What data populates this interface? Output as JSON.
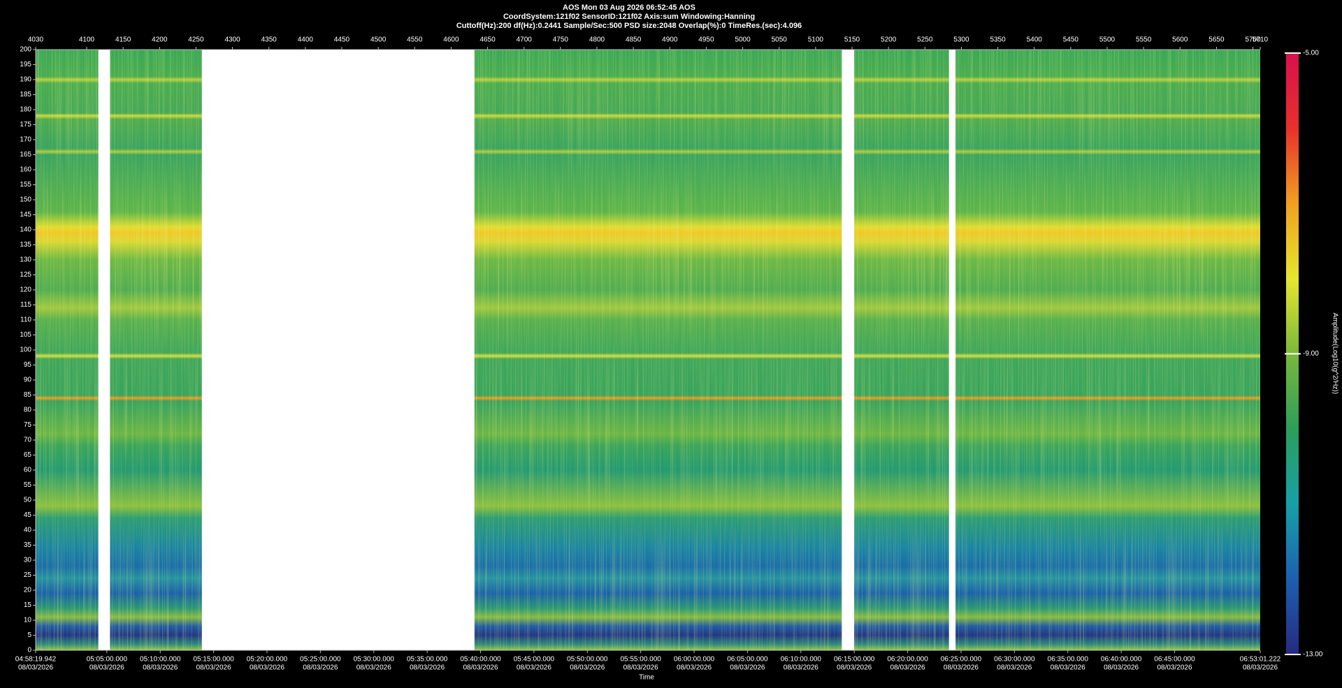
{
  "chart_data": {
    "type": "spectrogram",
    "title": "AOS  Mon 03 Aug 2026 06:52:45  AOS",
    "subtitle": "CoordSystem:121f02    SensorID:121f02     Axis:sum      Windowing:Hanning",
    "settings_line": "Cuttoff(Hz):200      df(Hz):0.2441       Sample/Sec:500       PSD size:2048       Overlap(%):0        TimeRes.(sec):4.096",
    "xlabel": "Time",
    "xlim": [
      4030,
      5710
    ],
    "x2ticks": [
      4030,
      4100,
      4150,
      4200,
      4250,
      4300,
      4350,
      4400,
      4450,
      4500,
      4550,
      4600,
      4650,
      4700,
      4750,
      4800,
      4850,
      4900,
      4950,
      5000,
      5050,
      5100,
      5150,
      5200,
      5250,
      5300,
      5350,
      5400,
      5450,
      5500,
      5550,
      5600,
      5650,
      5700,
      5710
    ],
    "xticks": [
      {
        "value": 4030,
        "label": "04:58:19.942",
        "date": "08/03/2026"
      },
      {
        "value": 4127.67,
        "label": "05:05:00.000",
        "date": "08/03/2026"
      },
      {
        "value": 4200.91,
        "label": "05:10:00.000",
        "date": "08/03/2026"
      },
      {
        "value": 4274.15,
        "label": "05:15:00.000",
        "date": "08/03/2026"
      },
      {
        "value": 4347.4,
        "label": "05:20:00.000",
        "date": "08/03/2026"
      },
      {
        "value": 4420.64,
        "label": "05:25:00.000",
        "date": "08/03/2026"
      },
      {
        "value": 4493.88,
        "label": "05:30:00.000",
        "date": "08/03/2026"
      },
      {
        "value": 4567.12,
        "label": "05:35:00.000",
        "date": "08/03/2026"
      },
      {
        "value": 4640.37,
        "label": "05:40:00.000",
        "date": "08/03/2026"
      },
      {
        "value": 4713.61,
        "label": "05:45:00.000",
        "date": "08/03/2026"
      },
      {
        "value": 4786.85,
        "label": "05:50:00.000",
        "date": "08/03/2026"
      },
      {
        "value": 4860.09,
        "label": "05:55:00.000",
        "date": "08/03/2026"
      },
      {
        "value": 4933.34,
        "label": "06:00:00.000",
        "date": "08/03/2026"
      },
      {
        "value": 5006.58,
        "label": "06:05:00.000",
        "date": "08/03/2026"
      },
      {
        "value": 5079.82,
        "label": "06:10:00.000",
        "date": "08/03/2026"
      },
      {
        "value": 5153.06,
        "label": "06:15:00.000",
        "date": "08/03/2026"
      },
      {
        "value": 5226.31,
        "label": "06:20:00.000",
        "date": "08/03/2026"
      },
      {
        "value": 5299.55,
        "label": "06:25:00.000",
        "date": "08/03/2026"
      },
      {
        "value": 5372.79,
        "label": "06:30:00.000",
        "date": "08/03/2026"
      },
      {
        "value": 5446.03,
        "label": "06:35:00.000",
        "date": "08/03/2026"
      },
      {
        "value": 5519.28,
        "label": "06:40:00.000",
        "date": "08/03/2026"
      },
      {
        "value": 5592.52,
        "label": "06:45:00.000",
        "date": "08/03/2026"
      },
      {
        "value": 5710,
        "label": "06:53:01.222",
        "date": "08/03/2026"
      }
    ],
    "ylim": [
      0,
      200
    ],
    "yticks": [
      0,
      5,
      10,
      15,
      20,
      25,
      30,
      35,
      40,
      45,
      50,
      55,
      60,
      65,
      70,
      75,
      80,
      85,
      90,
      95,
      100,
      105,
      110,
      115,
      120,
      125,
      130,
      135,
      140,
      145,
      150,
      155,
      160,
      165,
      170,
      175,
      180,
      185,
      190,
      195,
      200
    ],
    "data_segments": [
      [
        4030,
        4116
      ],
      [
        4132,
        4258
      ],
      [
        4632,
        5136
      ],
      [
        5153,
        5283
      ],
      [
        5292,
        5710
      ]
    ],
    "colorbar": {
      "label": "Amplitude(Log10(g^2/Hz))",
      "lim": [
        -13,
        -5
      ],
      "ticks": [
        {
          "value": -13,
          "label": "-13.00"
        },
        {
          "value": -9,
          "label": "-9.00"
        },
        {
          "value": -5,
          "label": "-5.00"
        }
      ],
      "colormap": [
        "#262a80",
        "#1c5fb0",
        "#16a0a8",
        "#2c9e5a",
        "#7ab83a",
        "#e6e62e",
        "#f0a020",
        "#e8302c",
        "#d8104e"
      ]
    }
  }
}
